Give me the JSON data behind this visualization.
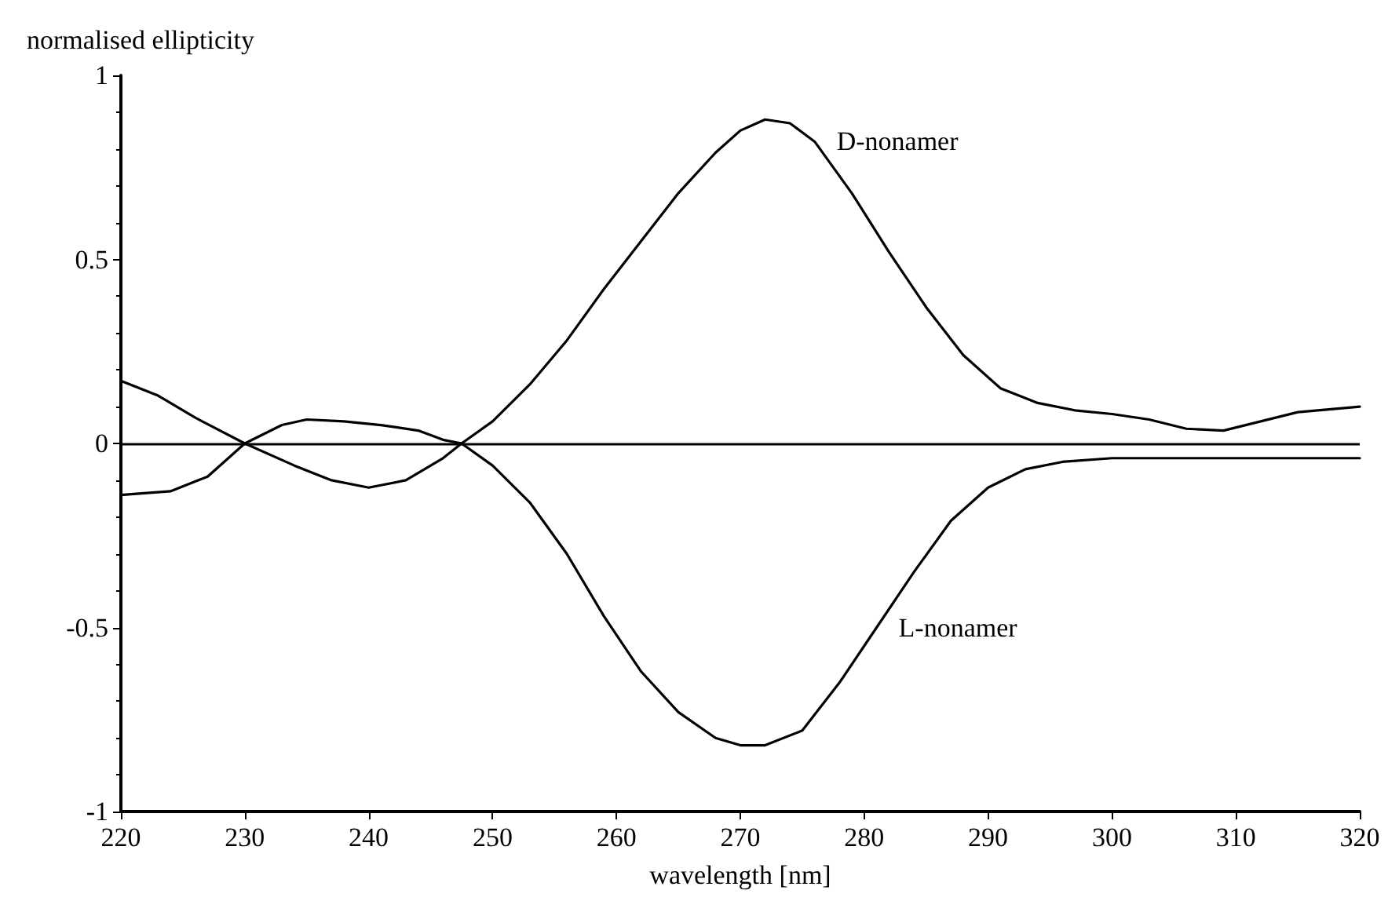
{
  "chart_data": {
    "type": "line",
    "xlabel": "wavelength [nm]",
    "ylabel": "normalised ellipticity",
    "xlim": [
      220,
      320
    ],
    "xticks": [
      220,
      230,
      240,
      250,
      260,
      270,
      280,
      290,
      300,
      310,
      320
    ],
    "ylim": [
      -1,
      1
    ],
    "yticks": [
      -1,
      -0.5,
      0,
      0.5,
      1
    ],
    "grid": false,
    "legend": false,
    "marker": "none",
    "line_style": "solid",
    "series": [
      {
        "name": "D-nonamer",
        "color": "#000000",
        "x": [
          220,
          224,
          227,
          230,
          233,
          235,
          238,
          241,
          244,
          246,
          247.5,
          250,
          253,
          256,
          259,
          262,
          265,
          268,
          270,
          272,
          274,
          276,
          279,
          282,
          285,
          288,
          291,
          294,
          297,
          300,
          303,
          306,
          309,
          312,
          315,
          320
        ],
        "values": [
          -0.14,
          -0.13,
          -0.09,
          0,
          0.05,
          0.065,
          0.06,
          0.05,
          0.035,
          0.01,
          0,
          0.06,
          0.16,
          0.28,
          0.42,
          0.55,
          0.68,
          0.79,
          0.85,
          0.88,
          0.87,
          0.82,
          0.68,
          0.52,
          0.37,
          0.24,
          0.15,
          0.11,
          0.09,
          0.08,
          0.065,
          0.04,
          0.035,
          0.06,
          0.085,
          0.1
        ]
      },
      {
        "name": "L-nonamer",
        "color": "#000000",
        "x": [
          220,
          223,
          226,
          230,
          234,
          237,
          240,
          243,
          246,
          247.5,
          250,
          253,
          256,
          259,
          262,
          265,
          268,
          270,
          272,
          275,
          278,
          281,
          284,
          287,
          290,
          293,
          296,
          300,
          310,
          320
        ],
        "values": [
          0.17,
          0.13,
          0.07,
          0,
          -0.06,
          -0.1,
          -0.12,
          -0.1,
          -0.04,
          0,
          -0.06,
          -0.16,
          -0.3,
          -0.47,
          -0.62,
          -0.73,
          -0.8,
          -0.82,
          -0.82,
          -0.78,
          -0.65,
          -0.5,
          -0.35,
          -0.21,
          -0.12,
          -0.07,
          -0.05,
          -0.04,
          -0.04,
          -0.04
        ]
      }
    ],
    "ref_lines": [
      {
        "axis": "y",
        "value": 0,
        "color": "#000000",
        "line_style": "solid"
      }
    ]
  }
}
